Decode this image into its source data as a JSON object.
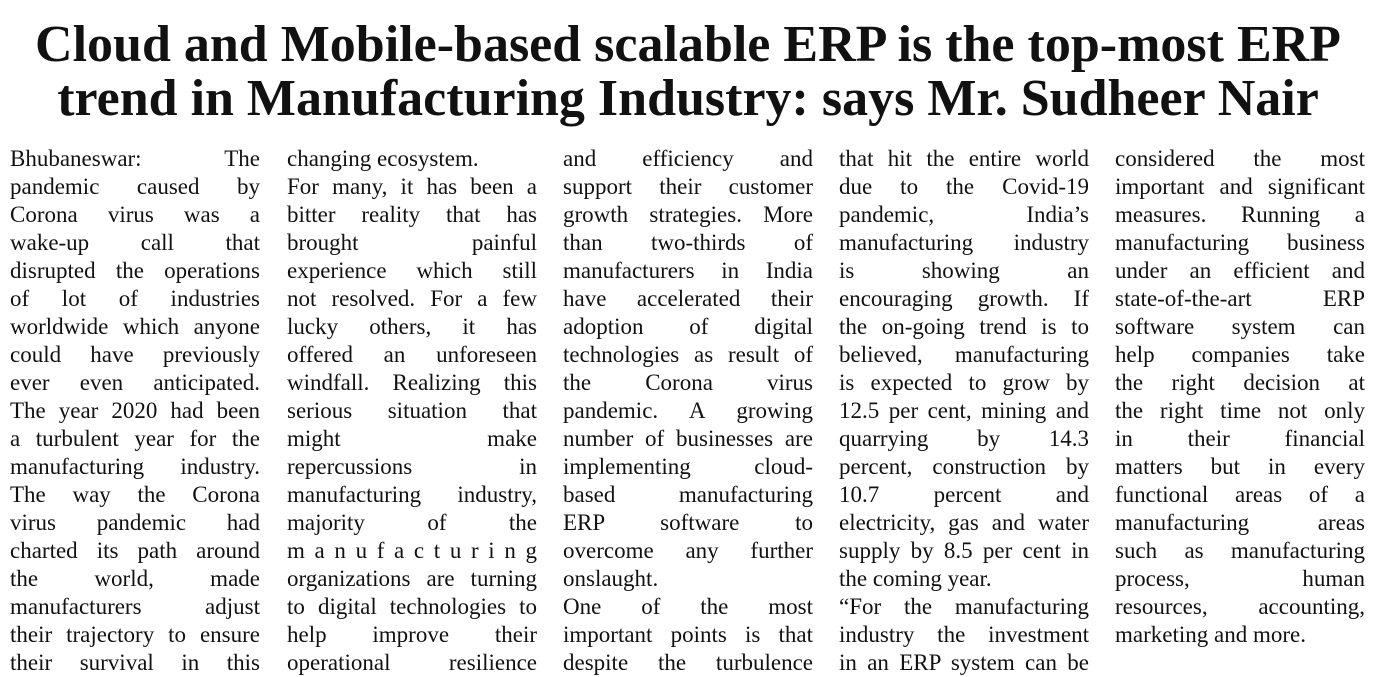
{
  "title": [
    "Cloud and Mobile-based scalable ERP is the top-most ERP",
    "trend in Manufacturing Industry: says Mr. Sudheer Nair"
  ],
  "columns": [
    {
      "paragraphs": [
        {
          "lines": [
            "Bhubaneswar: The",
            "pandemic caused by",
            "Corona virus was a",
            "wake-up call that",
            "disrupted the operations",
            "of lot of industries",
            "worldwide which anyone",
            "could have previously",
            "ever even anticipated.",
            "The year 2020 had been",
            "a turbulent year for the",
            "manufacturing industry.",
            "The way the Corona",
            "virus pandemic had",
            "charted its path around",
            "the world, made",
            "manufacturers adjust",
            "their trajectory to ensure",
            "their survival in this"
          ]
        }
      ]
    },
    {
      "paragraphs": [
        {
          "lines": [
            "changing ecosystem."
          ]
        },
        {
          "lines": [
            "For many, it has been a",
            "bitter reality that has",
            "brought painful",
            "experience which still",
            "not resolved. For a few",
            "lucky others, it has",
            "offered an unforeseen",
            "windfall. Realizing this",
            "serious situation that",
            "might make",
            "repercussions in",
            "manufacturing industry,",
            "majority of the",
            "manufacturing",
            "organizations are turning",
            "to digital technologies to",
            "help improve their",
            "operational resilience"
          ]
        }
      ]
    },
    {
      "paragraphs": [
        {
          "lines": [
            "and efficiency and",
            "support their customer",
            "growth strategies. More",
            "than two-thirds of",
            "manufacturers in India",
            "have accelerated their",
            "adoption of digital",
            "technologies as result of",
            "the Corona virus",
            "pandemic. A growing",
            "number of businesses are",
            "implementing cloud-",
            "based manufacturing",
            "ERP software to",
            "overcome any further",
            "onslaught."
          ]
        },
        {
          "lines": [
            "One of the most",
            "important points is that",
            "despite the turbulence"
          ]
        }
      ]
    },
    {
      "paragraphs": [
        {
          "lines": [
            "that hit the entire world",
            "due to the Covid-19",
            "pandemic, India’s",
            "manufacturing industry",
            "is showing an",
            "encouraging growth. If",
            "the on-going trend is to",
            "believed, manufacturing",
            "is expected to grow by",
            "12.5 per cent, mining and",
            "quarrying by 14.3",
            "percent, construction by",
            "10.7 percent and",
            "electricity, gas and water",
            "supply by 8.5 per cent in",
            "the coming year."
          ]
        },
        {
          "lines": [
            "“For the manufacturing",
            "industry the investment",
            "in an ERP system can be"
          ]
        }
      ]
    },
    {
      "paragraphs": [
        {
          "lines": [
            "considered the most",
            "important and significant",
            "measures. Running a",
            "manufacturing business",
            "under an efficient and",
            "state-of-the-art ERP",
            "software system can",
            "help companies take",
            "the right decision at",
            "the right time not only",
            "in their financial",
            "matters but in every",
            "functional areas of a",
            "manufacturing areas",
            "such as manufacturing",
            "process, human",
            "resources, accounting,",
            "marketing and more."
          ]
        }
      ]
    }
  ]
}
